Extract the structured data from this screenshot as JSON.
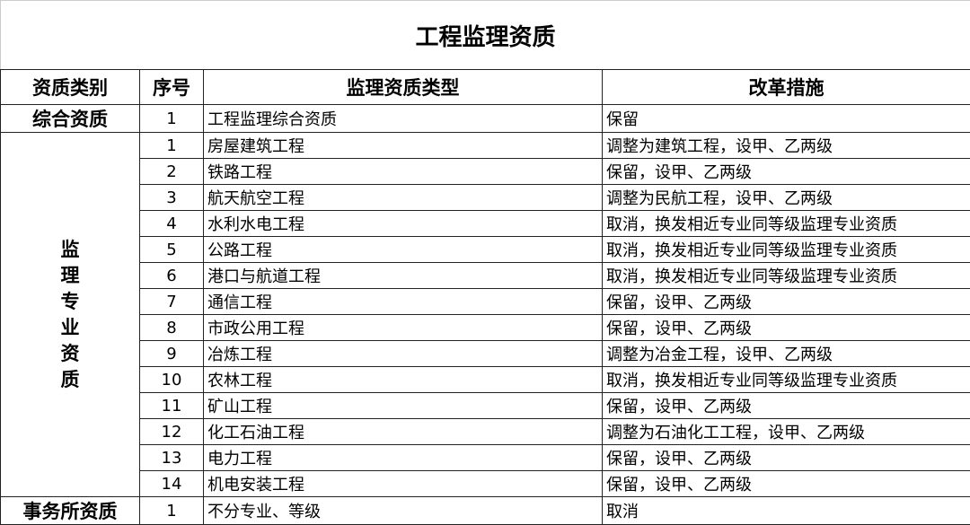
{
  "title": "工程监理资质",
  "headers": [
    "资质类别",
    "序号",
    "监理资质类型",
    "改革措施"
  ],
  "groups": {
    "comprehensive": {
      "category": "综合资质",
      "rows": [
        {
          "no": "1",
          "type": "工程监理综合资质",
          "measure": "保留"
        }
      ]
    },
    "specialty": {
      "category_chars": [
        "监",
        "理",
        "专",
        "业",
        "资",
        "质"
      ],
      "rows": [
        {
          "no": "1",
          "type": "房屋建筑工程",
          "measure": "调整为建筑工程，设甲、乙两级"
        },
        {
          "no": "2",
          "type": "铁路工程",
          "measure": "保留，设甲、乙两级"
        },
        {
          "no": "3",
          "type": "航天航空工程",
          "measure": "调整为民航工程，设甲、乙两级"
        },
        {
          "no": "4",
          "type": "水利水电工程",
          "measure": "取消，换发相近专业同等级监理专业资质"
        },
        {
          "no": "5",
          "type": "公路工程",
          "measure": "取消，换发相近专业同等级监理专业资质"
        },
        {
          "no": "6",
          "type": "港口与航道工程",
          "measure": "取消，换发相近专业同等级监理专业资质"
        },
        {
          "no": "7",
          "type": "通信工程",
          "measure": "保留，设甲、乙两级"
        },
        {
          "no": "8",
          "type": "市政公用工程",
          "measure": "保留，设甲、乙两级"
        },
        {
          "no": "9",
          "type": "冶炼工程",
          "measure": "调整为冶金工程，设甲、乙两级"
        },
        {
          "no": "10",
          "type": "农林工程",
          "measure": "取消，换发相近专业同等级监理专业资质"
        },
        {
          "no": "11",
          "type": "矿山工程",
          "measure": "保留，设甲、乙两级"
        },
        {
          "no": "12",
          "type": "化工石油工程",
          "measure": "调整为石油化工工程，设甲、乙两级"
        },
        {
          "no": "13",
          "type": "电力工程",
          "measure": "保留，设甲、乙两级"
        },
        {
          "no": "14",
          "type": "机电安装工程",
          "measure": "保留，设甲、乙两级"
        }
      ]
    },
    "firm": {
      "category": "事务所资质",
      "rows": [
        {
          "no": "1",
          "type": "不分专业、等级",
          "measure": "取消"
        }
      ]
    }
  }
}
